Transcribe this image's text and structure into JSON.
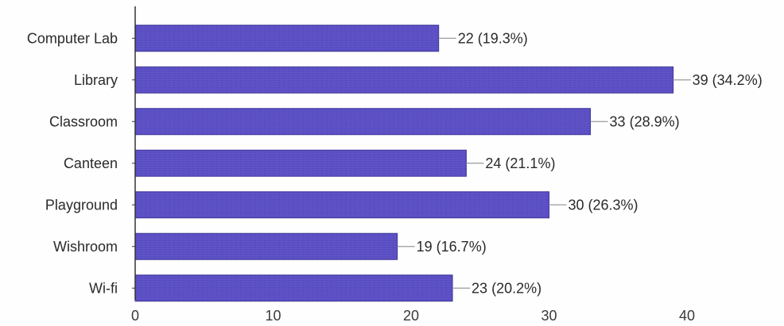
{
  "chart_data": {
    "type": "bar",
    "orientation": "horizontal",
    "categories": [
      "Computer Lab",
      "Library",
      "Classroom",
      "Canteen",
      "Playground",
      "Wishroom",
      "Wi-fi"
    ],
    "values": [
      22,
      39,
      33,
      24,
      30,
      19,
      23
    ],
    "data_labels": [
      "22 (19.3%)",
      "39 (34.2%)",
      "33 (28.9%)",
      "24 (21.1%)",
      "30 (26.3%)",
      "19 (16.7%)",
      "23 (20.2%)"
    ],
    "xlim": [
      0,
      45
    ],
    "xticks": [
      0,
      10,
      20,
      30,
      40
    ],
    "title": "",
    "xlabel": "",
    "ylabel": "",
    "grid": false,
    "legend": "none",
    "bar_color": "#5b4fc4",
    "bar_edge_color": "#3f3596"
  }
}
